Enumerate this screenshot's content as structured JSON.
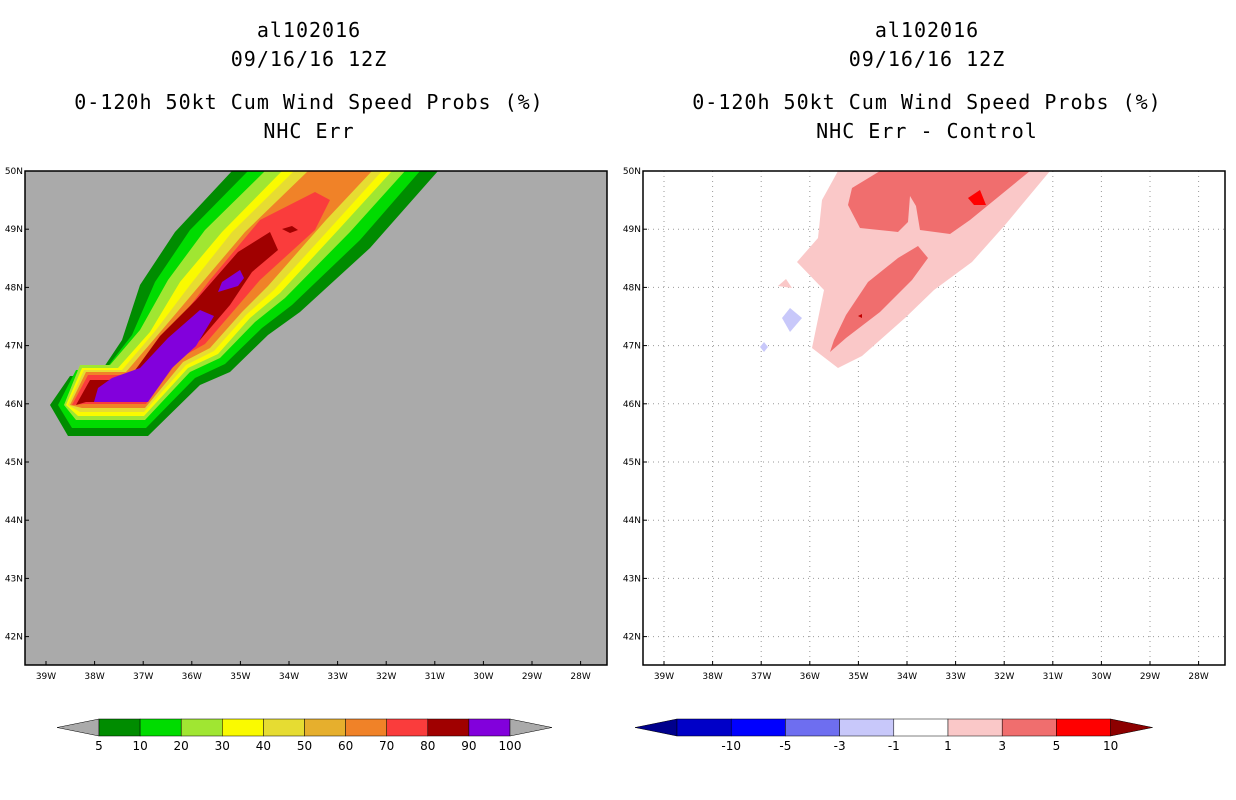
{
  "left_panel": {
    "title_line1": "al102016",
    "title_line2": "09/16/16 12Z",
    "title_line3": "0-120h 50kt Cum Wind Speed Probs (%)",
    "title_line4": "NHC Err",
    "background_color": "#aaaaaa"
  },
  "right_panel": {
    "title_line1": "al102016",
    "title_line2": "09/16/16 12Z",
    "title_line3": "0-120h 50kt Cum Wind Speed Probs (%)",
    "title_line4": "NHC Err - Control",
    "background_color": "#ffffff"
  },
  "axes": {
    "lat_labels": [
      "50N",
      "49N",
      "48N",
      "47N",
      "46N",
      "45N",
      "44N",
      "43N",
      "42N"
    ],
    "lon_labels": [
      "39W",
      "38W",
      "37W",
      "36W",
      "35W",
      "34W",
      "33W",
      "32W",
      "31W",
      "30W",
      "29W",
      "28W"
    ]
  },
  "left_colorbar": {
    "labels": [
      "5",
      "10",
      "20",
      "30",
      "40",
      "50",
      "60",
      "70",
      "80",
      "90",
      "100"
    ],
    "colors": [
      "#008c00",
      "#00dc00",
      "#a0e632",
      "#fafa00",
      "#e6dc32",
      "#e6af2d",
      "#f08228",
      "#fa3c3c",
      "#a00000",
      "#8200dc"
    ],
    "end_color": "#aaaaaa"
  },
  "right_colorbar": {
    "labels": [
      "-10",
      "-5",
      "-3",
      "-1",
      "1",
      "3",
      "5",
      "10"
    ],
    "colors": [
      "#0000c8",
      "#0000ff",
      "#6e6ef0",
      "#c8c8fa",
      "#ffffff",
      "#fac8c8",
      "#f06e6e",
      "#ff0000"
    ],
    "low_end_color": "#00008c",
    "high_end_color": "#8c0000"
  }
}
